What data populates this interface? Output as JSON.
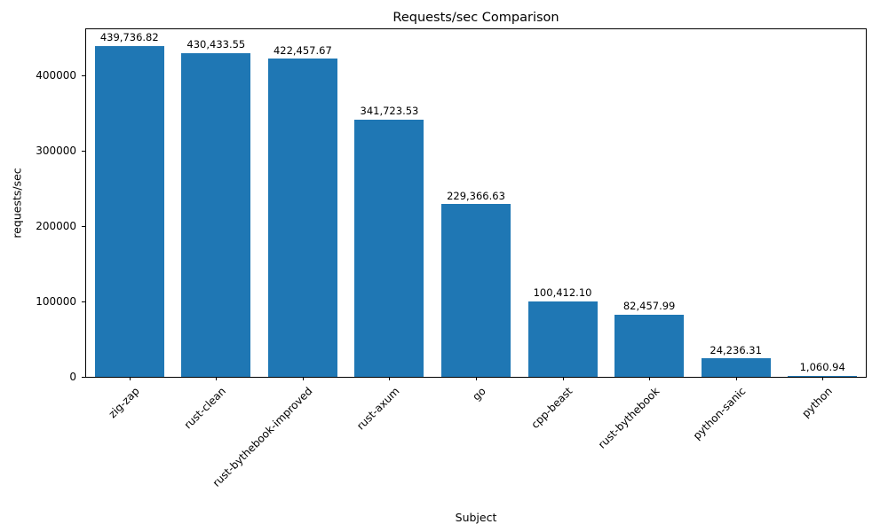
{
  "chart_data": {
    "type": "bar",
    "title": "Requests/sec Comparison",
    "xlabel": "Subject",
    "ylabel": "requests/sec",
    "categories": [
      "zig-zap",
      "rust-clean",
      "rust-bythebook-improved",
      "rust-axum",
      "go",
      "cpp-beast",
      "rust-bythebook",
      "python-sanic",
      "python"
    ],
    "values": [
      439736.82,
      430433.55,
      422457.67,
      341723.53,
      229366.63,
      100412.1,
      82457.99,
      24236.31,
      1060.94
    ],
    "value_labels": [
      "439,736.82",
      "430,433.55",
      "422,457.67",
      "341,723.53",
      "229,366.63",
      "100,412.10",
      "82,457.99",
      "24,236.31",
      "1,060.94"
    ],
    "bar_color": "#1f77b4",
    "ylim": [
      0,
      461723.66
    ],
    "yticks": [
      0,
      100000,
      200000,
      300000,
      400000
    ],
    "ytick_labels": [
      "0",
      "100000",
      "200000",
      "300000",
      "400000"
    ],
    "grid": false,
    "legend_position": "none",
    "bar_width_fraction": 0.8
  }
}
